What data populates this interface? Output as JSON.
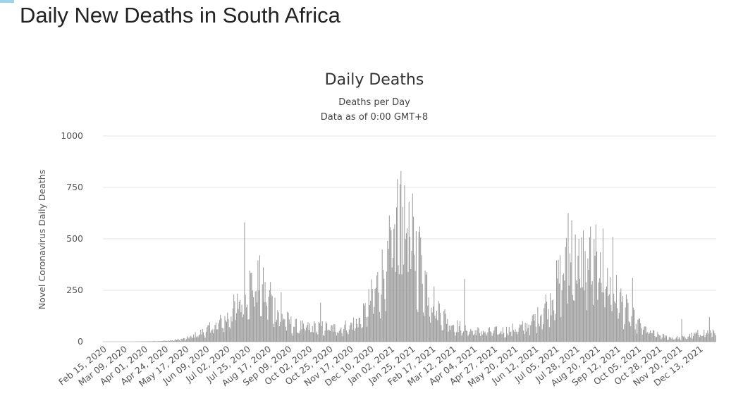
{
  "page": {
    "heading": "Daily New Deaths in South Africa"
  },
  "colors": {
    "bar": "#9a9a9a",
    "grid": "#e6e6e6"
  },
  "chart_data": {
    "type": "bar",
    "title": "Daily Deaths",
    "subtitle": "Deaths per Day",
    "subtitle2": "Data as of 0:00 GMT+8",
    "ylabel": "Novel Coronavirus Daily Deaths",
    "xlabel": "",
    "ylim": [
      0,
      1000
    ],
    "yticks": [
      0,
      250,
      500,
      750,
      1000
    ],
    "grid": true,
    "legend": "none",
    "x_start": "2020-02-15",
    "x_end": "2021-12-31",
    "xticks": [
      "Feb 15, 2020",
      "Mar 09, 2020",
      "Apr 01, 2020",
      "Apr 24, 2020",
      "May 17, 2020",
      "Jun 09, 2020",
      "Jul 02, 2020",
      "Jul 25, 2020",
      "Aug 17, 2020",
      "Sep 09, 2020",
      "Oct 02, 2020",
      "Oct 25, 2020",
      "Nov 17, 2020",
      "Dec 10, 2020",
      "Jan 02, 2021",
      "Jan 25, 2021",
      "Feb 17, 2021",
      "Mar 12, 2021",
      "Apr 04, 2021",
      "Apr 27, 2021",
      "May 20, 2021",
      "Jun 12, 2021",
      "Jul 05, 2021",
      "Jul 28, 2021",
      "Aug 20, 2021",
      "Sep 12, 2021",
      "Oct 05, 2021",
      "Oct 28, 2021",
      "Nov 20, 2021",
      "Dec 13, 2021"
    ],
    "trend_points": [
      [
        "2020-02-15",
        0
      ],
      [
        "2020-03-20",
        0
      ],
      [
        "2020-04-15",
        3
      ],
      [
        "2020-05-01",
        6
      ],
      [
        "2020-05-17",
        15
      ],
      [
        "2020-06-01",
        40
      ],
      [
        "2020-06-15",
        70
      ],
      [
        "2020-07-01",
        110
      ],
      [
        "2020-07-15",
        190
      ],
      [
        "2020-07-25",
        270
      ],
      [
        "2020-08-05",
        300
      ],
      [
        "2020-08-17",
        220
      ],
      [
        "2020-09-01",
        130
      ],
      [
        "2020-09-15",
        80
      ],
      [
        "2020-10-01",
        70
      ],
      [
        "2020-10-15",
        75
      ],
      [
        "2020-11-01",
        65
      ],
      [
        "2020-11-17",
        80
      ],
      [
        "2020-12-01",
        120
      ],
      [
        "2020-12-15",
        250
      ],
      [
        "2020-12-31",
        430
      ],
      [
        "2021-01-12",
        560
      ],
      [
        "2021-01-20",
        580
      ],
      [
        "2021-02-01",
        420
      ],
      [
        "2021-02-17",
        220
      ],
      [
        "2021-03-01",
        130
      ],
      [
        "2021-03-15",
        80
      ],
      [
        "2021-04-01",
        55
      ],
      [
        "2021-04-20",
        50
      ],
      [
        "2021-05-10",
        55
      ],
      [
        "2021-06-01",
        75
      ],
      [
        "2021-06-15",
        120
      ],
      [
        "2021-07-01",
        230
      ],
      [
        "2021-07-15",
        360
      ],
      [
        "2021-07-25",
        400
      ],
      [
        "2021-08-10",
        380
      ],
      [
        "2021-08-25",
        350
      ],
      [
        "2021-09-10",
        240
      ],
      [
        "2021-09-25",
        140
      ],
      [
        "2021-10-10",
        70
      ],
      [
        "2021-10-25",
        35
      ],
      [
        "2021-11-10",
        20
      ],
      [
        "2021-11-25",
        20
      ],
      [
        "2021-12-10",
        40
      ],
      [
        "2021-12-31",
        55
      ]
    ],
    "spikes": [
      [
        "2020-07-22",
        580
      ],
      [
        "2020-08-08",
        420
      ],
      [
        "2020-08-20",
        290
      ],
      [
        "2020-09-01",
        240
      ],
      [
        "2020-10-15",
        190
      ],
      [
        "2020-12-29",
        490
      ],
      [
        "2021-01-09",
        790
      ],
      [
        "2021-01-13",
        830
      ],
      [
        "2021-01-17",
        760
      ],
      [
        "2021-01-22",
        680
      ],
      [
        "2021-01-26",
        720
      ],
      [
        "2021-02-03",
        560
      ],
      [
        "2021-03-25",
        305
      ],
      [
        "2021-07-19",
        625
      ],
      [
        "2021-07-23",
        590
      ],
      [
        "2021-08-05",
        540
      ],
      [
        "2021-08-13",
        560
      ],
      [
        "2021-08-19",
        570
      ],
      [
        "2021-08-27",
        550
      ],
      [
        "2021-09-07",
        510
      ],
      [
        "2021-09-29",
        310
      ],
      [
        "2021-11-23",
        110
      ],
      [
        "2021-12-24",
        120
      ]
    ]
  }
}
